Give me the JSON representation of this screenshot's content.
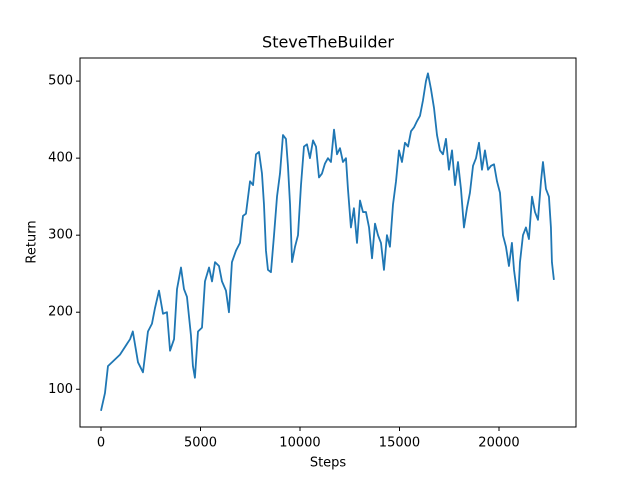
{
  "chart_data": {
    "type": "line",
    "title": "SteveTheBuilder",
    "xlabel": "Steps",
    "ylabel": "Return",
    "xlim": [
      -1055,
      23870
    ],
    "ylim": [
      51,
      530
    ],
    "xticks": [
      0,
      5000,
      10000,
      15000,
      20000
    ],
    "yticks": [
      100,
      200,
      300,
      400,
      500
    ],
    "grid": false,
    "series": [
      {
        "name": "Return",
        "color": "#1f77b4",
        "x": [
          0,
          200,
          350,
          955,
          1460,
          1600,
          1860,
          2110,
          2360,
          2560,
          2710,
          2915,
          3115,
          3315,
          3470,
          3670,
          3820,
          4020,
          4170,
          4320,
          4520,
          4620,
          4720,
          4875,
          5075,
          5225,
          5430,
          5580,
          5730,
          5930,
          6080,
          6280,
          6430,
          6580,
          6785,
          6985,
          7135,
          7285,
          7490,
          7640,
          7790,
          7940,
          8090,
          8190,
          8290,
          8390,
          8540,
          8695,
          8845,
          8995,
          9145,
          9295,
          9395,
          9500,
          9600,
          9750,
          9900,
          10050,
          10200,
          10350,
          10500,
          10655,
          10805,
          10955,
          11105,
          11255,
          11405,
          11555,
          11710,
          11860,
          12010,
          12160,
          12310,
          12410,
          12560,
          12710,
          12865,
          13015,
          13165,
          13315,
          13470,
          13620,
          13770,
          13920,
          14070,
          14220,
          14370,
          14520,
          14675,
          14825,
          14975,
          15125,
          15275,
          15430,
          15580,
          15730,
          15880,
          16030,
          16180,
          16330,
          16430,
          16580,
          16735,
          16885,
          17035,
          17185,
          17335,
          17485,
          17640,
          17790,
          17940,
          18090,
          18240,
          18390,
          18540,
          18695,
          18845,
          18995,
          19145,
          19295,
          19450,
          19600,
          19750,
          19900,
          20050,
          20200,
          20350,
          20500,
          20650,
          20755,
          20955,
          21055,
          21205,
          21355,
          21505,
          21660,
          21810,
          21960,
          22110,
          22210,
          22360,
          22510,
          22610,
          22660,
          22760
        ],
        "values": [
          72,
          95,
          130,
          145,
          165,
          175,
          135,
          122,
          175,
          185,
          205,
          228,
          198,
          200,
          150,
          165,
          230,
          258,
          230,
          220,
          170,
          130,
          115,
          175,
          180,
          240,
          258,
          240,
          265,
          260,
          240,
          228,
          200,
          265,
          280,
          290,
          325,
          328,
          370,
          365,
          405,
          408,
          380,
          340,
          280,
          255,
          252,
          300,
          350,
          380,
          430,
          425,
          390,
          340,
          265,
          285,
          300,
          365,
          415,
          418,
          400,
          423,
          415,
          375,
          380,
          393,
          400,
          395,
          437,
          405,
          413,
          395,
          400,
          360,
          310,
          335,
          290,
          345,
          330,
          330,
          310,
          270,
          315,
          300,
          290,
          255,
          300,
          285,
          340,
          370,
          410,
          395,
          420,
          415,
          435,
          440,
          448,
          455,
          475,
          500,
          510,
          490,
          465,
          430,
          410,
          405,
          425,
          385,
          410,
          365,
          395,
          360,
          310,
          335,
          355,
          390,
          400,
          420,
          385,
          410,
          385,
          390,
          392,
          370,
          355,
          300,
          285,
          260,
          290,
          255,
          215,
          265,
          300,
          310,
          295,
          350,
          330,
          320,
          370,
          395,
          360,
          350,
          310,
          265,
          242
        ]
      }
    ]
  }
}
